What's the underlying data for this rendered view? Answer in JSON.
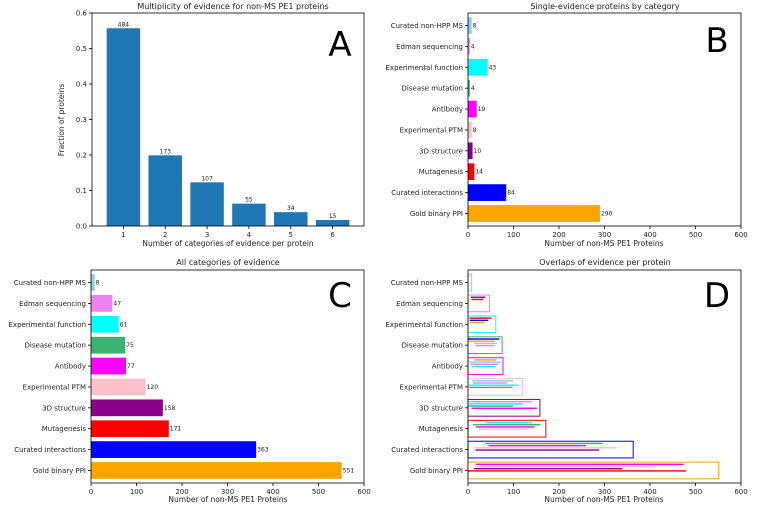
{
  "colors": {
    "blue_bars": "#1f77b4",
    "categories": {
      "Curated non-HPP MS": "#87ceeb",
      "Edman sequencing": "#ee82ee",
      "Experimental function": "#00ffff",
      "Disease mutation": "#3cb371",
      "Antibody": "#ff00ff",
      "Experimental PTM": "#ffc0cb",
      "3D structure": "#8b008b",
      "Mutagenesis": "#ff0000",
      "Curated interactions": "#0000ff",
      "Gold binary PPI": "#ffa500"
    }
  },
  "chart_data": [
    {
      "panel": "A",
      "type": "bar",
      "title": "Multiplicity of evidence for non-MS PE1 proteins",
      "xlabel": "Number of categories of evidence per protein",
      "ylabel": "Fraction of proteins",
      "categories": [
        "1",
        "2",
        "3",
        "4",
        "5",
        "6"
      ],
      "values": [
        0.557,
        0.199,
        0.123,
        0.063,
        0.039,
        0.017
      ],
      "data_labels": [
        "484",
        "173",
        "107",
        "55",
        "34",
        "15"
      ],
      "ylim": [
        0,
        0.6
      ],
      "yticks": [
        "0.0",
        "0.1",
        "0.2",
        "0.3",
        "0.4",
        "0.5",
        "0.6"
      ]
    },
    {
      "panel": "B",
      "type": "bar",
      "orientation": "horizontal",
      "title": "Single-evidence proteins by category",
      "xlabel": "Number of non-MS PE1 Proteins",
      "categories": [
        "Curated non-HPP MS",
        "Edman sequencing",
        "Experimental function",
        "Disease mutation",
        "Antibody",
        "Experimental PTM",
        "3D structure",
        "Mutagenesis",
        "Curated interactions",
        "Gold binary PPI"
      ],
      "values": [
        8,
        4,
        43,
        4,
        19,
        8,
        10,
        14,
        84,
        290
      ],
      "data_labels": [
        "8",
        "4",
        "43",
        "4",
        "19",
        "8",
        "10",
        "14",
        "84",
        "290"
      ],
      "xlim": [
        0,
        600
      ],
      "xticks": [
        "0",
        "100",
        "200",
        "300",
        "400",
        "500",
        "600"
      ]
    },
    {
      "panel": "C",
      "type": "bar",
      "orientation": "horizontal",
      "title": "All categories of evidence",
      "xlabel": "Number of non-MS PE1 Proteins",
      "categories": [
        "Curated non-HPP MS",
        "Edman sequencing",
        "Experimental function",
        "Disease mutation",
        "Antibody",
        "Experimental PTM",
        "3D structure",
        "Mutagenesis",
        "Curated interactions",
        "Gold binary PPI"
      ],
      "values": [
        8,
        47,
        61,
        75,
        77,
        120,
        158,
        171,
        363,
        551
      ],
      "data_labels": [
        "8",
        "47",
        "61",
        "75",
        "77",
        "120",
        "158",
        "171",
        "363",
        "551"
      ],
      "xlim": [
        0,
        600
      ],
      "xticks": [
        "0",
        "100",
        "200",
        "300",
        "400",
        "500",
        "600"
      ]
    },
    {
      "panel": "D",
      "type": "bar",
      "orientation": "horizontal",
      "title": "Overlaps of evidence per protein",
      "xlabel": "Number of non-MS PE1 Proteins",
      "categories": [
        "Curated non-HPP MS",
        "Edman sequencing",
        "Experimental function",
        "Disease mutation",
        "Antibody",
        "Experimental PTM",
        "3D structure",
        "Mutagenesis",
        "Curated interactions",
        "Gold binary PPI"
      ],
      "values": [
        8,
        47,
        61,
        75,
        77,
        120,
        158,
        171,
        363,
        551
      ],
      "xlim": [
        0,
        600
      ],
      "xticks": [
        "0",
        "100",
        "200",
        "300",
        "400",
        "500",
        "600"
      ]
    }
  ],
  "panel_letters": [
    "A",
    "B",
    "C",
    "D"
  ]
}
